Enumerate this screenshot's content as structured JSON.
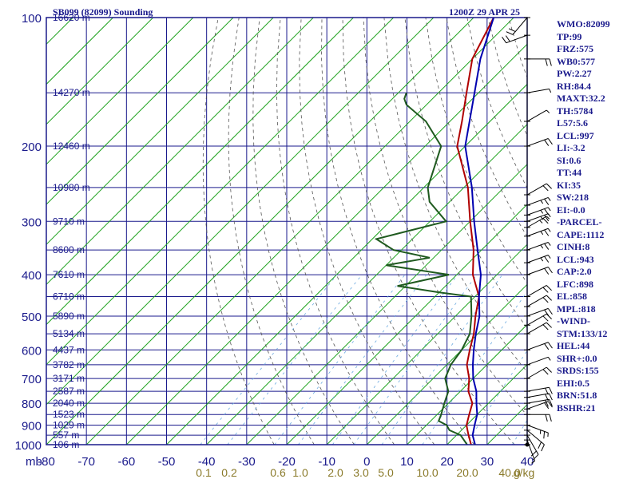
{
  "header": {
    "station_title": "SB099 (82099) Sounding",
    "time": "1200Z 29 APR 25"
  },
  "indices": [
    "WMO:82099",
    "TP:99",
    "FRZ:575",
    "WB0:577",
    "PW:2.27",
    "RH:84.4",
    "MAXT:32.2",
    "TH:5784",
    "L57:5.6",
    "LCL:997",
    "LI:-3.2",
    "SI:0.6",
    "TT:44",
    "KI:35",
    "SW:218",
    "EI:-0.0",
    "-PARCEL-",
    "CAPE:1112",
    "CINH:8",
    "LCL:943",
    "CAP:2.0",
    "LFC:898",
    "EL:858",
    "MPL:818",
    "-WIND-",
    "STM:133/12",
    "HEL:44",
    "SHR+:0.0",
    "SRDS:155",
    "EHI:0.5",
    "BRN:51.8",
    "BSHR:21"
  ],
  "colors": {
    "frame": "#1a1a8c",
    "green_lines": "#1fa31f",
    "dry_adiabat": "#555555",
    "mixing_ratio": "#6aa9e0",
    "temperature": "#b00000",
    "dewpoint": "#1f5a1f",
    "parcel": "#0000b0",
    "label_text": "#1a1a8c",
    "mixing_label": "#8a7a2a"
  },
  "chart_data": {
    "type": "line",
    "xlabel": "",
    "ylabel": "mb",
    "xlim": [
      -80,
      40
    ],
    "ylim": [
      1000,
      100
    ],
    "y_scale": "log",
    "grid": true,
    "x_ticks": [
      "-80",
      "-70",
      "-60",
      "-50",
      "-40",
      "-30",
      "-20",
      "-10",
      "0",
      "10",
      "20",
      "30",
      "40"
    ],
    "pressure_ticks": [
      {
        "p": 100,
        "label": "100"
      },
      {
        "p": 200,
        "label": "200"
      },
      {
        "p": 300,
        "label": "300"
      },
      {
        "p": 400,
        "label": "400"
      },
      {
        "p": 500,
        "label": "500"
      },
      {
        "p": 600,
        "label": "600"
      },
      {
        "p": 700,
        "label": "700"
      },
      {
        "p": 800,
        "label": "800"
      },
      {
        "p": 900,
        "label": "900"
      },
      {
        "p": 1000,
        "label": "1000"
      }
    ],
    "height_labels": [
      {
        "p": 100,
        "label": "16620 m"
      },
      {
        "p": 150,
        "label": "14270 m"
      },
      {
        "p": 200,
        "label": "12460 m"
      },
      {
        "p": 250,
        "label": "10980 m"
      },
      {
        "p": 300,
        "label": "9710 m"
      },
      {
        "p": 350,
        "label": "8600 m"
      },
      {
        "p": 400,
        "label": "7610 m"
      },
      {
        "p": 450,
        "label": "6710 m"
      },
      {
        "p": 500,
        "label": "5890 m"
      },
      {
        "p": 550,
        "label": "5134 m"
      },
      {
        "p": 600,
        "label": "4437 m"
      },
      {
        "p": 650,
        "label": "3782 m"
      },
      {
        "p": 700,
        "label": "3171 m"
      },
      {
        "p": 750,
        "label": "2587 m"
      },
      {
        "p": 800,
        "label": "2040 m"
      },
      {
        "p": 850,
        "label": "1523 m"
      },
      {
        "p": 900,
        "label": "1029 m"
      },
      {
        "p": 950,
        "label": "557 m"
      },
      {
        "p": 1000,
        "label": "106 m"
      }
    ],
    "mixing_ratio_labels": [
      "0.1",
      "0.2",
      "0.6",
      "1.0",
      "2.0",
      "3.0",
      "5.0",
      "10.0",
      "20.0",
      "40.0",
      "g/kg"
    ],
    "series": [
      {
        "key": "temperature",
        "points": [
          [
            1000,
            26
          ],
          [
            950,
            23
          ],
          [
            925,
            21.5
          ],
          [
            900,
            20
          ],
          [
            850,
            18
          ],
          [
            800,
            16
          ],
          [
            750,
            12
          ],
          [
            700,
            9
          ],
          [
            650,
            5
          ],
          [
            600,
            2
          ],
          [
            550,
            -1
          ],
          [
            500,
            -5
          ],
          [
            450,
            -9
          ],
          [
            400,
            -16
          ],
          [
            350,
            -22
          ],
          [
            300,
            -30
          ],
          [
            250,
            -39
          ],
          [
            200,
            -52
          ],
          [
            175,
            -57
          ],
          [
            150,
            -63
          ],
          [
            125,
            -70
          ],
          [
            100,
            -75
          ]
        ]
      },
      {
        "key": "dewpoint",
        "points": [
          [
            1000,
            25
          ],
          [
            950,
            21
          ],
          [
            925,
            17
          ],
          [
            900,
            15
          ],
          [
            880,
            12
          ],
          [
            850,
            11
          ],
          [
            800,
            9
          ],
          [
            750,
            7
          ],
          [
            700,
            3
          ],
          [
            650,
            1
          ],
          [
            600,
            0
          ],
          [
            550,
            -2
          ],
          [
            500,
            -6
          ],
          [
            450,
            -11
          ],
          [
            440,
            -20
          ],
          [
            425,
            -32
          ],
          [
            400,
            -22
          ],
          [
            380,
            -40
          ],
          [
            365,
            -31
          ],
          [
            350,
            -42
          ],
          [
            330,
            -49
          ],
          [
            300,
            -36
          ],
          [
            270,
            -45
          ],
          [
            250,
            -49
          ],
          [
            200,
            -56
          ],
          [
            175,
            -66
          ],
          [
            160,
            -75
          ],
          [
            155,
            -77
          ],
          [
            150,
            -78
          ]
        ]
      },
      {
        "key": "parcel",
        "points": [
          [
            1000,
            27
          ],
          [
            950,
            24
          ],
          [
            900,
            22
          ],
          [
            850,
            20
          ],
          [
            800,
            17
          ],
          [
            750,
            14
          ],
          [
            700,
            10
          ],
          [
            650,
            6.5
          ],
          [
            600,
            3
          ],
          [
            550,
            -0.5
          ],
          [
            500,
            -4
          ],
          [
            450,
            -9
          ],
          [
            400,
            -14
          ],
          [
            350,
            -21
          ],
          [
            300,
            -29
          ],
          [
            250,
            -38
          ],
          [
            200,
            -50
          ],
          [
            150,
            -61
          ],
          [
            125,
            -68
          ],
          [
            100,
            -75
          ]
        ]
      }
    ],
    "barbs": [
      {
        "p": 1000,
        "dir": 250,
        "spd": 0
      },
      {
        "p": 975,
        "dir": 160,
        "spd": 5
      },
      {
        "p": 950,
        "dir": 150,
        "spd": 10
      },
      {
        "p": 925,
        "dir": 130,
        "spd": 10
      },
      {
        "p": 900,
        "dir": 110,
        "spd": 15
      },
      {
        "p": 850,
        "dir": 90,
        "spd": 10
      },
      {
        "p": 825,
        "dir": 70,
        "spd": 10
      },
      {
        "p": 800,
        "dir": 80,
        "spd": 10
      },
      {
        "p": 775,
        "dir": 80,
        "spd": 10
      },
      {
        "p": 750,
        "dir": 80,
        "spd": 10
      },
      {
        "p": 700,
        "dir": 60,
        "spd": 10
      },
      {
        "p": 650,
        "dir": 70,
        "spd": 5
      },
      {
        "p": 600,
        "dir": 70,
        "spd": 10
      },
      {
        "p": 550,
        "dir": 60,
        "spd": 10
      },
      {
        "p": 525,
        "dir": 60,
        "spd": 10
      },
      {
        "p": 500,
        "dir": 70,
        "spd": 10
      },
      {
        "p": 475,
        "dir": 60,
        "spd": 10
      },
      {
        "p": 450,
        "dir": 60,
        "spd": 10
      },
      {
        "p": 400,
        "dir": 70,
        "spd": 10
      },
      {
        "p": 375,
        "dir": 70,
        "spd": 15
      },
      {
        "p": 350,
        "dir": 70,
        "spd": 15
      },
      {
        "p": 325,
        "dir": 70,
        "spd": 15
      },
      {
        "p": 310,
        "dir": 60,
        "spd": 15
      },
      {
        "p": 300,
        "dir": 70,
        "spd": 15
      },
      {
        "p": 290,
        "dir": 70,
        "spd": 15
      },
      {
        "p": 275,
        "dir": 70,
        "spd": 15
      },
      {
        "p": 260,
        "dir": 60,
        "spd": 10
      },
      {
        "p": 200,
        "dir": 70,
        "spd": 10
      },
      {
        "p": 175,
        "dir": 60,
        "spd": 5
      },
      {
        "p": 150,
        "dir": 80,
        "spd": 5
      },
      {
        "p": 125,
        "dir": 90,
        "spd": 10
      },
      {
        "p": 110,
        "dir": 250,
        "spd": 10
      },
      {
        "p": 100,
        "dir": 220,
        "spd": 10
      }
    ]
  }
}
